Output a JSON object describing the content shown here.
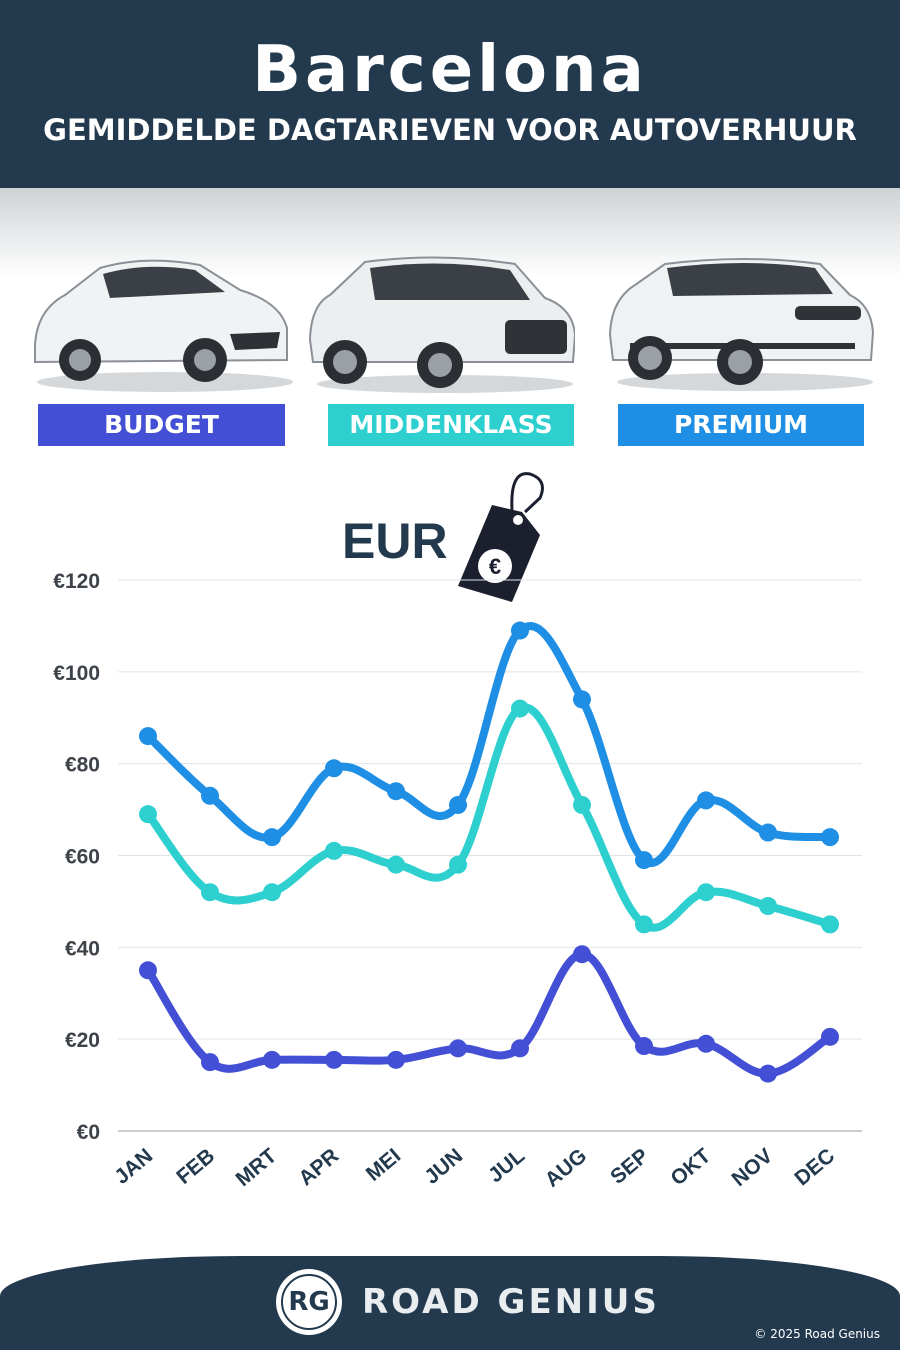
{
  "header": {
    "title": "Barcelona",
    "subtitle": "GEMIDDELDE DAGTARIEVEN VOOR AUTOVERHUUR"
  },
  "categories_legend": [
    {
      "label": "BUDGET",
      "color": "#4350d6"
    },
    {
      "label": "MIDDENKLASS",
      "color": "#2dcfcf"
    },
    {
      "label": "PREMIUM",
      "color": "#1f8fe5"
    }
  ],
  "currency_label": "EUR",
  "price_tag_icon": "euro-price-tag-icon",
  "chart_data": {
    "type": "line",
    "categories": [
      "JAN",
      "FEB",
      "MRT",
      "APR",
      "MEI",
      "JUN",
      "JUL",
      "AUG",
      "SEP",
      "OKT",
      "NOV",
      "DEC"
    ],
    "series": [
      {
        "name": "PREMIUM",
        "color": "#1f8fe5",
        "values": [
          86,
          73,
          64,
          79,
          74,
          71,
          109,
          94,
          59,
          72,
          65,
          64
        ]
      },
      {
        "name": "MIDDENKLASS",
        "color": "#2dcfcf",
        "values": [
          69,
          52,
          52,
          61,
          58,
          58,
          92,
          71,
          45,
          52,
          49,
          45
        ]
      },
      {
        "name": "BUDGET",
        "color": "#4350d6",
        "values": [
          35,
          15,
          15.5,
          15.5,
          15.5,
          18,
          18,
          38.5,
          18.5,
          19,
          12.5,
          20.5
        ]
      }
    ],
    "yticks": [
      "€0",
      "€20",
      "€40",
      "€60",
      "€80",
      "€100",
      "€120"
    ],
    "ylim": [
      0,
      120
    ],
    "grid": true
  },
  "footer": {
    "logo_text": "RG",
    "brand": "ROAD GENIUS",
    "copyright": "© 2025 Road Genius"
  }
}
